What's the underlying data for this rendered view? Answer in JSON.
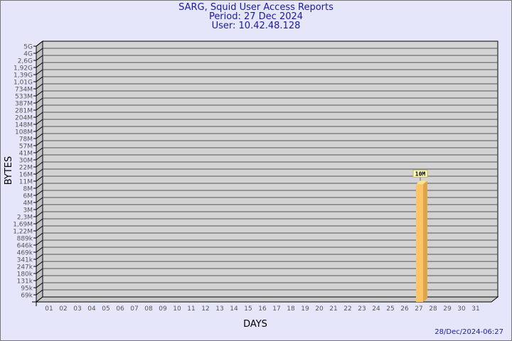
{
  "chart_data": {
    "type": "bar",
    "title": "SARG, Squid User Access Reports",
    "subtitle_period": "Period: 27 Dec 2024",
    "subtitle_user": "User: 10.42.48.128",
    "xlabel": "DAYS",
    "ylabel": "BYTES",
    "y_scale": "log",
    "grid": true,
    "y_tick_labels": [
      "5G",
      "4G",
      "2,6G",
      "1,92G",
      "1,39G",
      "1,01G",
      "734M",
      "533M",
      "387M",
      "281M",
      "204M",
      "148M",
      "108M",
      "78M",
      "57M",
      "41M",
      "30M",
      "22M",
      "16M",
      "11M",
      "8M",
      "6M",
      "4M",
      "3M",
      "2,3M",
      "1,69M",
      "1,22M",
      "889k",
      "646k",
      "469k",
      "341k",
      "247k",
      "180k",
      "131k",
      "95k",
      "69k"
    ],
    "categories": [
      "01",
      "02",
      "03",
      "04",
      "05",
      "06",
      "07",
      "08",
      "09",
      "10",
      "11",
      "12",
      "13",
      "14",
      "15",
      "16",
      "17",
      "18",
      "19",
      "20",
      "21",
      "22",
      "23",
      "24",
      "25",
      "26",
      "27",
      "28",
      "29",
      "30",
      "31"
    ],
    "bars": [
      {
        "day": "27",
        "value": 10000000,
        "label": "10M"
      }
    ],
    "colors": {
      "bar_front": "#ffc468",
      "bar_side": "#dea64a",
      "bar_top": "#ffe08a",
      "wall": "#d3d3d3",
      "background": "#e6e6fa",
      "title": "#1a1aa0"
    }
  },
  "footer": {
    "timestamp": "28/Dec/2024-06:27"
  }
}
